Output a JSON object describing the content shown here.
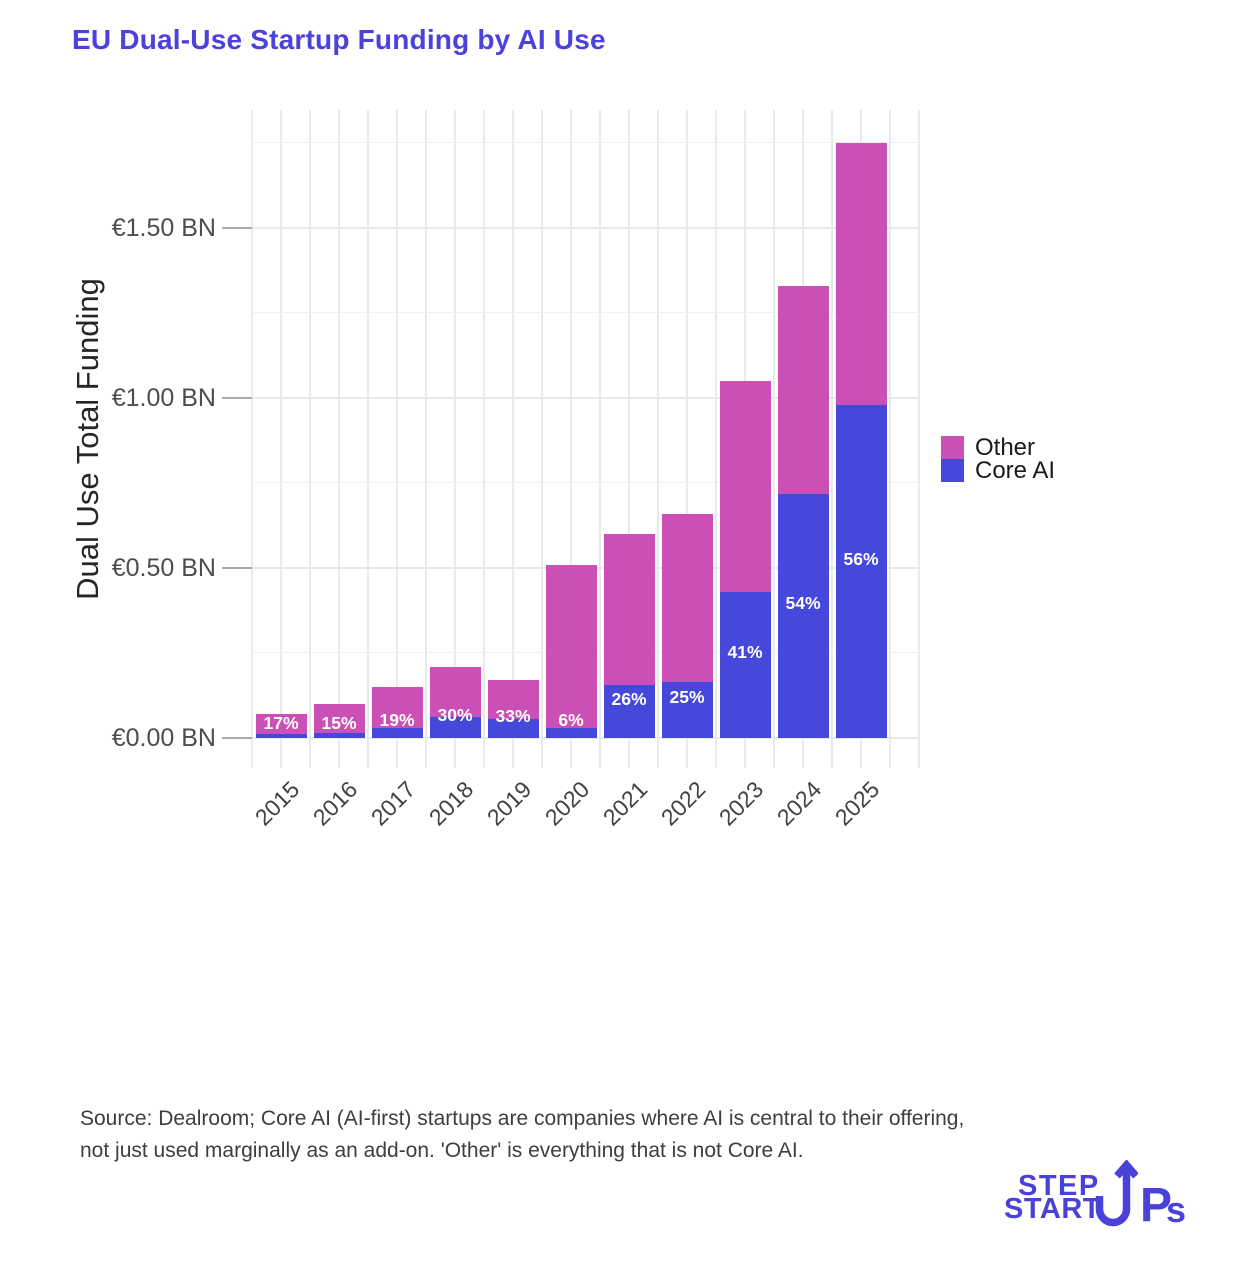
{
  "title": {
    "text": "EU Dual-Use Startup Funding by AI Use",
    "color": "#4b41dc"
  },
  "chart_data": {
    "type": "bar",
    "stacked": true,
    "title": "EU Dual-Use Startup Funding by AI Use",
    "xlabel": "",
    "ylabel": "Dual Use Total Funding",
    "categories": [
      "2015",
      "2016",
      "2017",
      "2018",
      "2019",
      "2020",
      "2021",
      "2022",
      "2023",
      "2024",
      "2025"
    ],
    "totals_bn": [
      0.07,
      0.1,
      0.15,
      0.21,
      0.17,
      0.51,
      0.6,
      0.66,
      1.05,
      1.33,
      1.75
    ],
    "core_ai_pct": [
      17,
      15,
      19,
      30,
      33,
      6,
      26,
      25,
      41,
      54,
      56
    ],
    "bar_labels": [
      "17%",
      "15%",
      "19%",
      "30%",
      "33%",
      "6%",
      "26%",
      "25%",
      "41%",
      "54%",
      "56%"
    ],
    "series": [
      {
        "name": "Core AI",
        "color": "#4647db",
        "values": [
          0.012,
          0.015,
          0.029,
          0.063,
          0.056,
          0.031,
          0.156,
          0.165,
          0.431,
          0.718,
          0.98
        ]
      },
      {
        "name": "Other",
        "color": "#cb50b5",
        "values": [
          0.058,
          0.085,
          0.121,
          0.147,
          0.114,
          0.479,
          0.444,
          0.495,
          0.619,
          0.612,
          0.77
        ]
      }
    ],
    "ylim": [
      0,
      1.85
    ],
    "yticks": [
      {
        "value": 0.0,
        "label": "€0.00 BN"
      },
      {
        "value": 0.5,
        "label": "€0.50 BN"
      },
      {
        "value": 1.0,
        "label": "€1.00 BN"
      },
      {
        "value": 1.5,
        "label": "€1.50 BN"
      }
    ],
    "grid": true,
    "legend_position": "right",
    "legend": [
      {
        "label": "Other",
        "color": "#cb50b5"
      },
      {
        "label": "Core AI",
        "color": "#4647db"
      }
    ]
  },
  "footer": {
    "line1": "Source: Dealroom; Core AI (AI-first) startups are companies where AI is central to their offering,",
    "line2": "not just used marginally as an add-on. 'Other' is everything that is not Core AI."
  },
  "logo": {
    "word1": "STEP",
    "word2_start": "START",
    "word2_p": "P",
    "word2_s": "s",
    "color": "#4a42d8"
  }
}
